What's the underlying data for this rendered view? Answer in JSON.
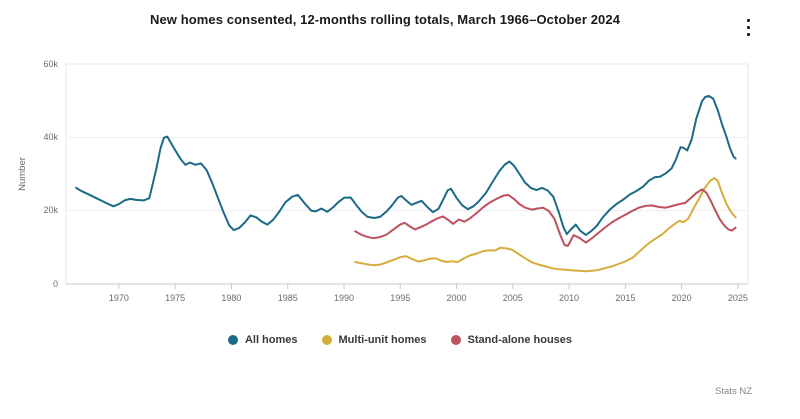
{
  "header": {
    "title": "New homes consented, 12-months rolling totals, March 1966–October 2024",
    "menu_icon": "kebab-menu"
  },
  "chart": {
    "y_axis": {
      "title": "Number",
      "ticks": [
        {
          "label": "60k",
          "value": 60
        },
        {
          "label": "40k",
          "value": 40
        },
        {
          "label": "20k",
          "value": 20
        },
        {
          "label": "0",
          "value": 0
        }
      ]
    },
    "x_axis": {
      "ticks": [
        {
          "label": "1970",
          "value": 1970
        },
        {
          "label": "1975",
          "value": 1975
        },
        {
          "label": "1980",
          "value": 1980
        },
        {
          "label": "1985",
          "value": 1985
        },
        {
          "label": "1990",
          "value": 1990
        },
        {
          "label": "1995",
          "value": 1995
        },
        {
          "label": "2000",
          "value": 2000
        },
        {
          "label": "2005",
          "value": 2005
        },
        {
          "label": "2010",
          "value": 2010
        },
        {
          "label": "2015",
          "value": 2015
        },
        {
          "label": "2020",
          "value": 2020
        },
        {
          "label": "2025",
          "value": 2025
        }
      ]
    }
  },
  "chart_data": {
    "type": "line",
    "title": "New homes consented, 12-months rolling totals, March 1966–October 2024",
    "xlabel": "",
    "ylabel": "Number",
    "x_unit": "decimal year",
    "value_unit": "thousands of homes consented (12-month rolling total)",
    "ylim": [
      0,
      60
    ],
    "xlim": [
      1965.3,
      2025.9
    ],
    "grid": "horizontal",
    "legend_position": "bottom",
    "series": [
      {
        "name": "All homes",
        "color": "#1b6a87",
        "points": [
          [
            1966.2,
            26.2
          ],
          [
            1966.7,
            25.3
          ],
          [
            1967.2,
            24.6
          ],
          [
            1968.0,
            23.4
          ],
          [
            1968.8,
            22.2
          ],
          [
            1969.5,
            21.2
          ],
          [
            1970.0,
            21.8
          ],
          [
            1970.5,
            22.8
          ],
          [
            1971.0,
            23.2
          ],
          [
            1971.6,
            22.9
          ],
          [
            1972.2,
            22.8
          ],
          [
            1972.7,
            23.4
          ],
          [
            1973.3,
            31.0
          ],
          [
            1973.7,
            37.0
          ],
          [
            1974.0,
            39.9
          ],
          [
            1974.3,
            40.2
          ],
          [
            1974.6,
            38.6
          ],
          [
            1975.0,
            36.5
          ],
          [
            1975.5,
            34.0
          ],
          [
            1975.9,
            32.5
          ],
          [
            1976.3,
            33.1
          ],
          [
            1976.8,
            32.5
          ],
          [
            1977.3,
            32.9
          ],
          [
            1977.8,
            31.0
          ],
          [
            1978.3,
            27.5
          ],
          [
            1978.8,
            23.5
          ],
          [
            1979.3,
            19.5
          ],
          [
            1979.8,
            16.0
          ],
          [
            1980.2,
            14.7
          ],
          [
            1980.7,
            15.3
          ],
          [
            1981.2,
            16.8
          ],
          [
            1981.7,
            18.7
          ],
          [
            1982.2,
            18.2
          ],
          [
            1982.7,
            17.0
          ],
          [
            1983.2,
            16.2
          ],
          [
            1983.7,
            17.5
          ],
          [
            1984.2,
            19.5
          ],
          [
            1984.8,
            22.3
          ],
          [
            1985.4,
            23.8
          ],
          [
            1985.9,
            24.3
          ],
          [
            1986.5,
            22.0
          ],
          [
            1987.1,
            20.0
          ],
          [
            1987.5,
            19.8
          ],
          [
            1988.0,
            20.6
          ],
          [
            1988.5,
            19.7
          ],
          [
            1989.0,
            20.8
          ],
          [
            1989.5,
            22.3
          ],
          [
            1990.0,
            23.5
          ],
          [
            1990.6,
            23.6
          ],
          [
            1991.1,
            21.5
          ],
          [
            1991.6,
            19.6
          ],
          [
            1992.1,
            18.3
          ],
          [
            1992.7,
            18.0
          ],
          [
            1993.2,
            18.3
          ],
          [
            1993.8,
            19.8
          ],
          [
            1994.3,
            21.6
          ],
          [
            1994.8,
            23.6
          ],
          [
            1995.1,
            24.0
          ],
          [
            1995.6,
            22.6
          ],
          [
            1996.0,
            21.6
          ],
          [
            1996.5,
            22.2
          ],
          [
            1996.9,
            22.7
          ],
          [
            1997.4,
            21.0
          ],
          [
            1997.9,
            19.6
          ],
          [
            1998.4,
            20.5
          ],
          [
            1998.9,
            23.5
          ],
          [
            1999.2,
            25.5
          ],
          [
            1999.5,
            26.0
          ],
          [
            2000.0,
            23.5
          ],
          [
            2000.5,
            21.5
          ],
          [
            2001.0,
            20.4
          ],
          [
            2001.5,
            21.2
          ],
          [
            2002.0,
            22.6
          ],
          [
            2002.6,
            24.8
          ],
          [
            2003.2,
            27.8
          ],
          [
            2003.8,
            30.8
          ],
          [
            2004.3,
            32.6
          ],
          [
            2004.7,
            33.4
          ],
          [
            2005.1,
            32.3
          ],
          [
            2005.6,
            30.0
          ],
          [
            2006.1,
            27.6
          ],
          [
            2006.6,
            26.2
          ],
          [
            2007.1,
            25.6
          ],
          [
            2007.6,
            26.2
          ],
          [
            2008.1,
            25.5
          ],
          [
            2008.6,
            23.8
          ],
          [
            2009.1,
            19.5
          ],
          [
            2009.5,
            15.5
          ],
          [
            2009.8,
            13.6
          ],
          [
            2010.2,
            15.0
          ],
          [
            2010.6,
            16.2
          ],
          [
            2011.0,
            14.5
          ],
          [
            2011.5,
            13.4
          ],
          [
            2012.0,
            14.5
          ],
          [
            2012.5,
            16.0
          ],
          [
            2013.0,
            18.2
          ],
          [
            2013.6,
            20.2
          ],
          [
            2014.2,
            21.8
          ],
          [
            2014.8,
            23.0
          ],
          [
            2015.4,
            24.4
          ],
          [
            2016.0,
            25.4
          ],
          [
            2016.6,
            26.6
          ],
          [
            2017.1,
            28.2
          ],
          [
            2017.6,
            29.1
          ],
          [
            2018.1,
            29.3
          ],
          [
            2018.6,
            30.2
          ],
          [
            2019.1,
            31.5
          ],
          [
            2019.5,
            34.0
          ],
          [
            2019.9,
            37.3
          ],
          [
            2020.2,
            37.1
          ],
          [
            2020.5,
            36.4
          ],
          [
            2020.9,
            39.5
          ],
          [
            2021.3,
            45.0
          ],
          [
            2021.8,
            49.8
          ],
          [
            2022.1,
            51.0
          ],
          [
            2022.4,
            51.3
          ],
          [
            2022.8,
            50.6
          ],
          [
            2023.2,
            47.5
          ],
          [
            2023.6,
            43.5
          ],
          [
            2024.0,
            40.0
          ],
          [
            2024.3,
            37.0
          ],
          [
            2024.6,
            34.8
          ],
          [
            2024.8,
            34.2
          ]
        ]
      },
      {
        "name": "Multi-unit homes",
        "color": "#d6ad3c",
        "points": [
          [
            1991.0,
            6.0
          ],
          [
            1991.5,
            5.7
          ],
          [
            1992.0,
            5.4
          ],
          [
            1992.6,
            5.1
          ],
          [
            1993.2,
            5.3
          ],
          [
            1993.8,
            5.9
          ],
          [
            1994.4,
            6.6
          ],
          [
            1995.0,
            7.3
          ],
          [
            1995.5,
            7.6
          ],
          [
            1996.0,
            6.9
          ],
          [
            1996.6,
            6.1
          ],
          [
            1997.1,
            6.4
          ],
          [
            1997.6,
            6.9
          ],
          [
            1998.1,
            7.0
          ],
          [
            1998.6,
            6.4
          ],
          [
            1999.1,
            6.0
          ],
          [
            1999.6,
            6.2
          ],
          [
            2000.1,
            6.0
          ],
          [
            2000.6,
            6.9
          ],
          [
            2001.2,
            7.8
          ],
          [
            2001.8,
            8.3
          ],
          [
            2002.4,
            9.0
          ],
          [
            2002.9,
            9.2
          ],
          [
            2003.4,
            9.1
          ],
          [
            2003.9,
            9.9
          ],
          [
            2004.4,
            9.7
          ],
          [
            2004.9,
            9.4
          ],
          [
            2005.5,
            8.2
          ],
          [
            2006.1,
            7.0
          ],
          [
            2006.7,
            5.9
          ],
          [
            2007.3,
            5.3
          ],
          [
            2007.9,
            4.8
          ],
          [
            2008.5,
            4.3
          ],
          [
            2009.1,
            4.0
          ],
          [
            2009.7,
            3.9
          ],
          [
            2010.3,
            3.7
          ],
          [
            2010.9,
            3.6
          ],
          [
            2011.5,
            3.5
          ],
          [
            2012.1,
            3.6
          ],
          [
            2012.7,
            3.9
          ],
          [
            2013.3,
            4.4
          ],
          [
            2013.9,
            4.9
          ],
          [
            2014.5,
            5.6
          ],
          [
            2015.1,
            6.3
          ],
          [
            2015.7,
            7.3
          ],
          [
            2016.3,
            9.0
          ],
          [
            2016.8,
            10.4
          ],
          [
            2017.3,
            11.6
          ],
          [
            2017.8,
            12.6
          ],
          [
            2018.3,
            13.6
          ],
          [
            2018.8,
            15.0
          ],
          [
            2019.3,
            16.2
          ],
          [
            2019.8,
            17.2
          ],
          [
            2020.2,
            16.9
          ],
          [
            2020.6,
            17.9
          ],
          [
            2021.0,
            20.3
          ],
          [
            2021.5,
            23.0
          ],
          [
            2022.0,
            25.9
          ],
          [
            2022.5,
            28.0
          ],
          [
            2022.9,
            28.9
          ],
          [
            2023.2,
            28.2
          ],
          [
            2023.6,
            24.8
          ],
          [
            2024.0,
            21.8
          ],
          [
            2024.4,
            19.6
          ],
          [
            2024.8,
            18.2
          ]
        ]
      },
      {
        "name": "Stand-alone houses",
        "color": "#bc525e",
        "points": [
          [
            1991.0,
            14.4
          ],
          [
            1991.5,
            13.5
          ],
          [
            1992.0,
            12.9
          ],
          [
            1992.6,
            12.5
          ],
          [
            1993.2,
            12.8
          ],
          [
            1993.8,
            13.5
          ],
          [
            1994.4,
            14.9
          ],
          [
            1995.0,
            16.2
          ],
          [
            1995.4,
            16.7
          ],
          [
            1995.9,
            15.6
          ],
          [
            1996.3,
            14.9
          ],
          [
            1996.8,
            15.5
          ],
          [
            1997.3,
            16.2
          ],
          [
            1997.8,
            17.1
          ],
          [
            1998.3,
            17.9
          ],
          [
            1998.8,
            18.4
          ],
          [
            1999.3,
            17.4
          ],
          [
            1999.7,
            16.4
          ],
          [
            2000.2,
            17.6
          ],
          [
            2000.7,
            17.0
          ],
          [
            2001.2,
            17.9
          ],
          [
            2001.8,
            19.4
          ],
          [
            2002.4,
            21.0
          ],
          [
            2003.0,
            22.3
          ],
          [
            2003.6,
            23.3
          ],
          [
            2004.2,
            24.1
          ],
          [
            2004.6,
            24.3
          ],
          [
            2005.1,
            23.2
          ],
          [
            2005.6,
            21.8
          ],
          [
            2006.1,
            20.8
          ],
          [
            2006.7,
            20.3
          ],
          [
            2007.2,
            20.6
          ],
          [
            2007.7,
            20.8
          ],
          [
            2008.2,
            19.9
          ],
          [
            2008.7,
            17.8
          ],
          [
            2009.2,
            13.5
          ],
          [
            2009.6,
            10.6
          ],
          [
            2009.9,
            10.4
          ],
          [
            2010.4,
            13.3
          ],
          [
            2010.9,
            12.6
          ],
          [
            2011.5,
            11.3
          ],
          [
            2012.0,
            12.4
          ],
          [
            2012.6,
            13.9
          ],
          [
            2013.2,
            15.4
          ],
          [
            2013.8,
            16.8
          ],
          [
            2014.4,
            17.9
          ],
          [
            2015.0,
            18.9
          ],
          [
            2015.6,
            19.9
          ],
          [
            2016.2,
            20.8
          ],
          [
            2016.8,
            21.3
          ],
          [
            2017.4,
            21.4
          ],
          [
            2018.0,
            21.0
          ],
          [
            2018.6,
            20.8
          ],
          [
            2019.2,
            21.3
          ],
          [
            2019.8,
            21.8
          ],
          [
            2020.3,
            22.1
          ],
          [
            2020.8,
            23.4
          ],
          [
            2021.3,
            24.8
          ],
          [
            2021.8,
            25.8
          ],
          [
            2022.2,
            24.9
          ],
          [
            2022.6,
            22.6
          ],
          [
            2023.0,
            20.0
          ],
          [
            2023.4,
            17.6
          ],
          [
            2023.8,
            15.9
          ],
          [
            2024.2,
            14.8
          ],
          [
            2024.5,
            14.6
          ],
          [
            2024.8,
            15.4
          ]
        ]
      }
    ]
  },
  "legend": {
    "items": [
      "All homes",
      "Multi-unit homes",
      "Stand-alone houses"
    ]
  },
  "footer": {
    "source": "Stats NZ"
  },
  "colors": {
    "all_homes": "#1b6a87",
    "multi_unit_homes": "#d6ad3c",
    "stand_alone_houses": "#bc525e",
    "grid": "#ededf3",
    "axis_line": "#c7c7d1",
    "axis_text": "#6b6b73"
  }
}
